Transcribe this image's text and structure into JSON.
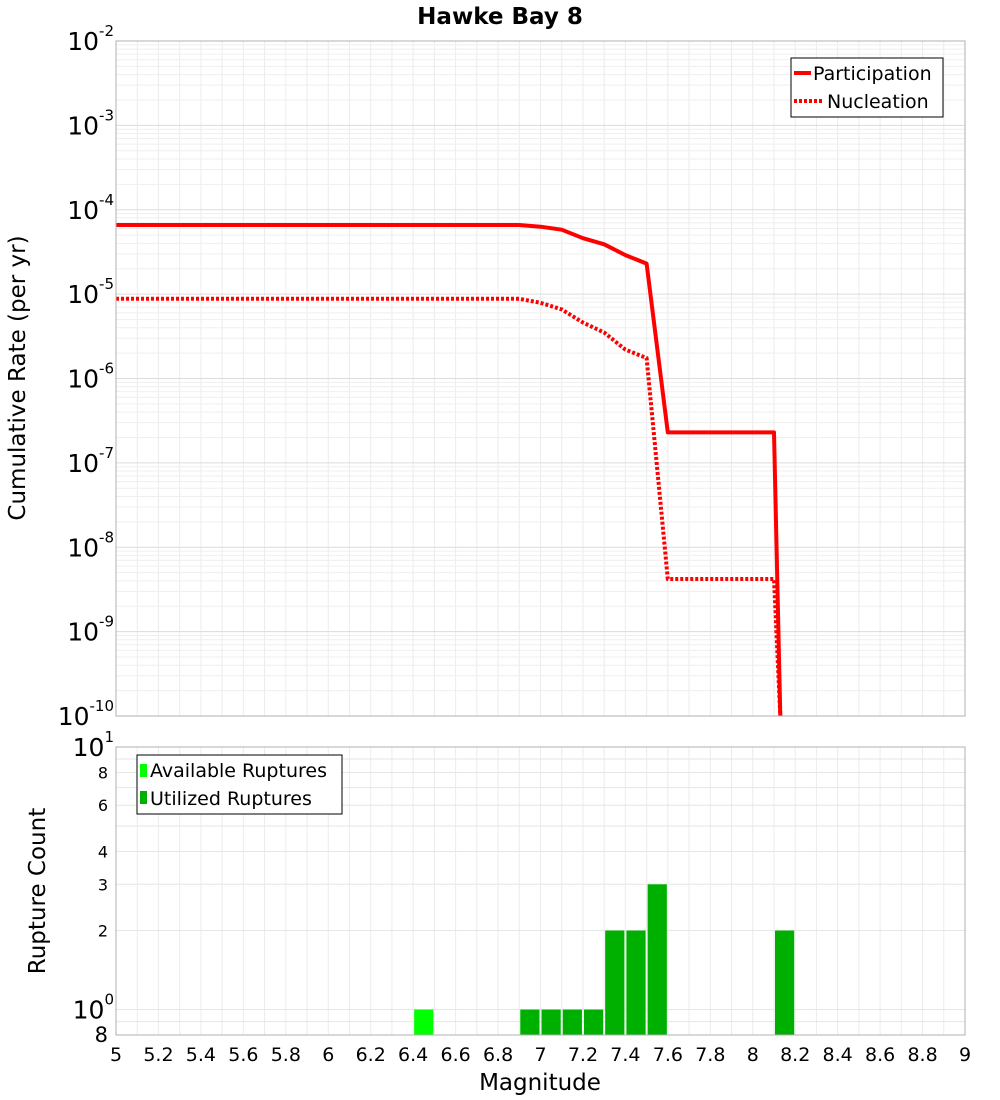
{
  "chart_data": [
    {
      "type": "line",
      "title": "Hawke Bay 8",
      "ylabel": "Cumulative Rate (per yr)",
      "yscale": "log",
      "xlim": [
        5,
        9
      ],
      "ylim": [
        1e-10,
        0.01
      ],
      "y_ticks": [
        {
          "base": "10",
          "exp": "-2",
          "value": 0.01
        },
        {
          "base": "10",
          "exp": "-3",
          "value": 0.001
        },
        {
          "base": "10",
          "exp": "-4",
          "value": 0.0001
        },
        {
          "base": "10",
          "exp": "-5",
          "value": 1e-05
        },
        {
          "base": "10",
          "exp": "-6",
          "value": 1e-06
        },
        {
          "base": "10",
          "exp": "-7",
          "value": 1e-07
        },
        {
          "base": "10",
          "exp": "-8",
          "value": 1e-08
        },
        {
          "base": "10",
          "exp": "-9",
          "value": 1e-09
        },
        {
          "base": "10",
          "exp": "-10",
          "value": 1e-10
        }
      ],
      "legend_position": "top-right",
      "grid": true,
      "series": [
        {
          "name": "Participation",
          "style": "solid",
          "color": "#ff0000",
          "x": [
            5.0,
            6.9,
            7.0,
            7.1,
            7.2,
            7.3,
            7.4,
            7.5,
            7.6,
            8.1,
            8.13
          ],
          "y": [
            6.6e-05,
            6.6e-05,
            6.3e-05,
            5.8e-05,
            4.6e-05,
            3.9e-05,
            2.9e-05,
            2.3e-05,
            2.3e-07,
            2.3e-07,
            1e-10
          ]
        },
        {
          "name": "Nucleation",
          "style": "dotted",
          "color": "#ff0000",
          "x": [
            5.0,
            6.9,
            7.0,
            7.1,
            7.2,
            7.3,
            7.4,
            7.5,
            7.6,
            8.1,
            8.13
          ],
          "y": [
            8.8e-06,
            8.8e-06,
            7.9e-06,
            6.6e-06,
            4.6e-06,
            3.5e-06,
            2.2e-06,
            1.75e-06,
            4.2e-09,
            4.2e-09,
            1e-10
          ]
        }
      ]
    },
    {
      "type": "bar",
      "ylabel": "Rupture Count",
      "xlabel": "Magnitude",
      "yscale": "log",
      "xlim": [
        5,
        9
      ],
      "ylim": [
        0.8,
        10
      ],
      "x_ticks": [
        "5",
        "5.2",
        "5.4",
        "5.6",
        "5.8",
        "6",
        "6.2",
        "6.4",
        "6.6",
        "6.8",
        "7",
        "7.2",
        "7.4",
        "7.6",
        "7.8",
        "8",
        "8.2",
        "8.4",
        "8.6",
        "8.8",
        "9"
      ],
      "y_ticks_major": [
        {
          "base": "10",
          "exp": "1",
          "value": 10
        },
        {
          "base": "10",
          "exp": "0",
          "value": 1
        }
      ],
      "y_ticks_minor": [
        {
          "label": "8",
          "value": 8
        },
        {
          "label": "6",
          "value": 6
        },
        {
          "label": "4",
          "value": 4
        },
        {
          "label": "3",
          "value": 3
        },
        {
          "label": "2",
          "value": 2
        }
      ],
      "y_bottom_label": {
        "label": "8",
        "value": 0.8
      },
      "legend_position": "top-left",
      "grid": true,
      "series": [
        {
          "name": "Available Ruptures",
          "color": "#00ff00",
          "x": [
            6.45
          ],
          "values": [
            1
          ]
        },
        {
          "name": "Utilized Ruptures",
          "color": "#00b000",
          "x": [
            6.95,
            7.05,
            7.15,
            7.25,
            7.35,
            7.45,
            7.55,
            8.15
          ],
          "values": [
            1,
            1,
            1,
            1,
            2,
            2,
            3,
            2
          ]
        }
      ]
    }
  ]
}
